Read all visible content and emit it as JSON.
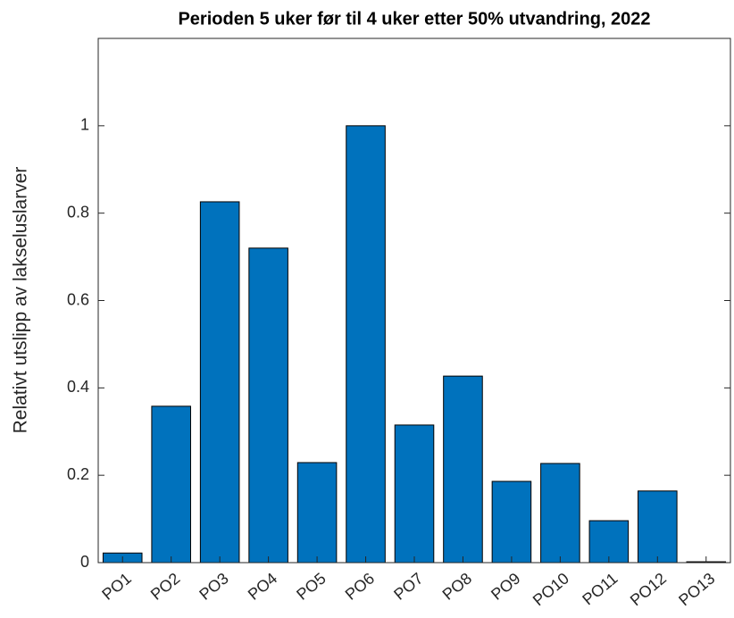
{
  "chart_data": {
    "type": "bar",
    "title": "Perioden 5 uker før til 4 uker etter 50% utvandring, 2022",
    "y_label": "Relativt utslipp av lakseluslarver",
    "categories": [
      "PO1",
      "PO2",
      "PO3",
      "PO4",
      "PO5",
      "PO6",
      "PO7",
      "PO8",
      "PO9",
      "PO10",
      "PO11",
      "PO12",
      "PO13"
    ],
    "values": [
      0.022,
      0.358,
      0.826,
      0.72,
      0.229,
      1.0,
      0.315,
      0.427,
      0.186,
      0.227,
      0.096,
      0.164,
      0.002
    ],
    "color": "#0072bd",
    "ylim": [
      0,
      1.2
    ],
    "yticks": [
      0,
      0.2,
      0.4,
      0.6,
      0.8,
      1
    ]
  }
}
